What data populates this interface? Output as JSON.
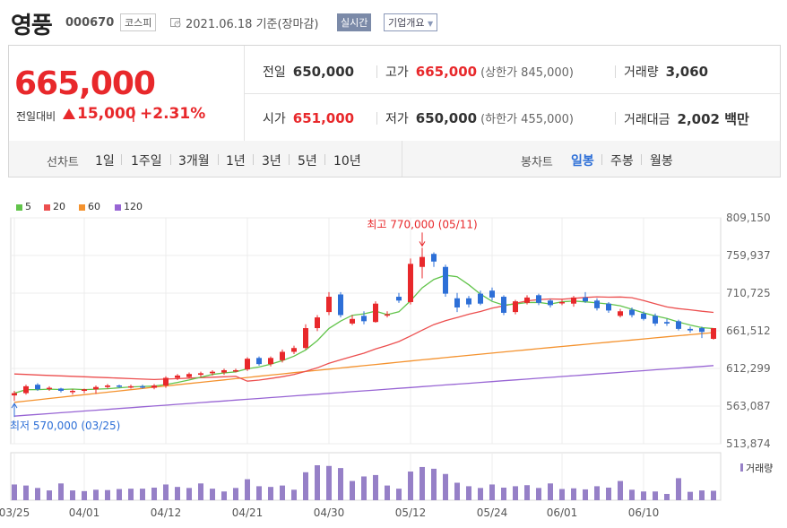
{
  "header": {
    "name": "영풍",
    "code": "000670",
    "market": "코스피",
    "date": "2021.06.18 기준(장마감)",
    "realtime": "실시간",
    "company": "기업개요"
  },
  "price": {
    "current": "665,000",
    "diff_label": "전일대비",
    "diff": "15,000",
    "rate": "+2.31%",
    "stats": {
      "prev_label": "전일",
      "prev": "650,000",
      "high_label": "고가",
      "high": "665,000",
      "upper_label": "(상한가 845,000)",
      "volume_label": "거래량",
      "volume": "3,060",
      "open_label": "시가",
      "open": "651,000",
      "low_label": "저가",
      "low": "650,000",
      "lower_label": "(하한가 455,000)",
      "amount_label": "거래대금",
      "amount": "2,002 백만"
    }
  },
  "periods": {
    "line_title": "선차트",
    "line_items": [
      "1일",
      "1주일",
      "3개월",
      "1년",
      "3년",
      "5년",
      "10년"
    ],
    "candle_title": "봉차트",
    "candle_items": [
      "일봉",
      "주봉",
      "월봉"
    ],
    "active_candle": "일봉"
  },
  "legend": [
    {
      "label": "5",
      "color": "#62c44b"
    },
    {
      "label": "20",
      "color": "#ec4f4f"
    },
    {
      "label": "60",
      "color": "#f4922e"
    },
    {
      "label": "120",
      "color": "#9865d4"
    }
  ],
  "colors": {
    "up": "#e8282b",
    "down": "#2d6fd7",
    "vol": "#9680c7"
  },
  "chart_data": {
    "type": "candlestick",
    "y_ticks": [
      "809,150",
      "759,937",
      "710,725",
      "661,512",
      "612,299",
      "563,087",
      "513,874"
    ],
    "ylim": [
      513874,
      809150
    ],
    "x_ticks": [
      {
        "label": "03/25",
        "index": 0
      },
      {
        "label": "04/01",
        "index": 6
      },
      {
        "label": "04/12",
        "index": 13
      },
      {
        "label": "04/21",
        "index": 20
      },
      {
        "label": "04/30",
        "index": 27
      },
      {
        "label": "05/12",
        "index": 34
      },
      {
        "label": "05/24",
        "index": 41
      },
      {
        "label": "06/01",
        "index": 47
      },
      {
        "label": "06/10",
        "index": 54
      }
    ],
    "max_annotation": "최고 770,000 (05/11)",
    "min_annotation": "최저 570,000 (03/25)",
    "volume_label": "거래량",
    "candles": [
      {
        "o": 577000,
        "c": 580000,
        "h": 583000,
        "l": 570000,
        "v": 45
      },
      {
        "o": 580000,
        "c": 589000,
        "h": 591000,
        "l": 578000,
        "v": 42
      },
      {
        "o": 591000,
        "c": 585000,
        "h": 593000,
        "l": 583000,
        "v": 35
      },
      {
        "o": 586000,
        "c": 587000,
        "h": 589000,
        "l": 583000,
        "v": 28
      },
      {
        "o": 586000,
        "c": 583000,
        "h": 587000,
        "l": 581000,
        "v": 48
      },
      {
        "o": 583000,
        "c": 583000,
        "h": 585000,
        "l": 578000,
        "v": 28
      },
      {
        "o": 583000,
        "c": 585000,
        "h": 586000,
        "l": 580000,
        "v": 26
      },
      {
        "o": 585000,
        "c": 588000,
        "h": 590000,
        "l": 579000,
        "v": 30
      },
      {
        "o": 588000,
        "c": 590000,
        "h": 592000,
        "l": 586000,
        "v": 29
      },
      {
        "o": 590000,
        "c": 589000,
        "h": 591000,
        "l": 587000,
        "v": 32
      },
      {
        "o": 589000,
        "c": 589000,
        "h": 591000,
        "l": 586000,
        "v": 33
      },
      {
        "o": 589000,
        "c": 588000,
        "h": 591000,
        "l": 586000,
        "v": 33
      },
      {
        "o": 587000,
        "c": 590000,
        "h": 592000,
        "l": 585000,
        "v": 36
      },
      {
        "o": 590000,
        "c": 600000,
        "h": 602000,
        "l": 587000,
        "v": 45
      },
      {
        "o": 600000,
        "c": 603000,
        "h": 605000,
        "l": 597000,
        "v": 38
      },
      {
        "o": 601000,
        "c": 605000,
        "h": 607000,
        "l": 599000,
        "v": 35
      },
      {
        "o": 604000,
        "c": 606000,
        "h": 608000,
        "l": 601000,
        "v": 48
      },
      {
        "o": 606000,
        "c": 608000,
        "h": 610000,
        "l": 603000,
        "v": 33
      },
      {
        "o": 607000,
        "c": 610000,
        "h": 612000,
        "l": 604000,
        "v": 25
      },
      {
        "o": 610000,
        "c": 610000,
        "h": 612000,
        "l": 607000,
        "v": 35
      },
      {
        "o": 611000,
        "c": 625000,
        "h": 627000,
        "l": 609000,
        "v": 60
      },
      {
        "o": 626000,
        "c": 618000,
        "h": 628000,
        "l": 616000,
        "v": 40
      },
      {
        "o": 618000,
        "c": 626000,
        "h": 628000,
        "l": 615000,
        "v": 38
      },
      {
        "o": 623000,
        "c": 634000,
        "h": 637000,
        "l": 620000,
        "v": 42
      },
      {
        "o": 634000,
        "c": 639000,
        "h": 642000,
        "l": 631000,
        "v": 30
      },
      {
        "o": 639000,
        "c": 665000,
        "h": 670000,
        "l": 637000,
        "v": 80
      },
      {
        "o": 665000,
        "c": 679000,
        "h": 682000,
        "l": 661000,
        "v": 100
      },
      {
        "o": 686000,
        "c": 706000,
        "h": 712000,
        "l": 682000,
        "v": 98
      },
      {
        "o": 709000,
        "c": 682000,
        "h": 712000,
        "l": 679000,
        "v": 92
      },
      {
        "o": 671000,
        "c": 677000,
        "h": 682000,
        "l": 669000,
        "v": 55
      },
      {
        "o": 681000,
        "c": 674000,
        "h": 687000,
        "l": 670000,
        "v": 68
      },
      {
        "o": 673000,
        "c": 697000,
        "h": 700000,
        "l": 672000,
        "v": 72
      },
      {
        "o": 683000,
        "c": 683000,
        "h": 687000,
        "l": 679000,
        "v": 42
      },
      {
        "o": 706000,
        "c": 701000,
        "h": 711000,
        "l": 698000,
        "v": 33
      },
      {
        "o": 699000,
        "c": 749000,
        "h": 756000,
        "l": 696000,
        "v": 82
      },
      {
        "o": 745000,
        "c": 758000,
        "h": 770000,
        "l": 730000,
        "v": 95
      },
      {
        "o": 762000,
        "c": 752000,
        "h": 764000,
        "l": 745000,
        "v": 90
      },
      {
        "o": 745000,
        "c": 710000,
        "h": 748000,
        "l": 706000,
        "v": 75
      },
      {
        "o": 704000,
        "c": 692000,
        "h": 711000,
        "l": 686000,
        "v": 50
      },
      {
        "o": 704000,
        "c": 696000,
        "h": 707000,
        "l": 692000,
        "v": 40
      },
      {
        "o": 710000,
        "c": 697000,
        "h": 714000,
        "l": 695000,
        "v": 35
      },
      {
        "o": 714000,
        "c": 705000,
        "h": 718000,
        "l": 701000,
        "v": 45
      },
      {
        "o": 706000,
        "c": 685000,
        "h": 708000,
        "l": 682000,
        "v": 36
      },
      {
        "o": 686000,
        "c": 700000,
        "h": 702000,
        "l": 683000,
        "v": 40
      },
      {
        "o": 698000,
        "c": 705000,
        "h": 708000,
        "l": 696000,
        "v": 43
      },
      {
        "o": 708000,
        "c": 698000,
        "h": 710000,
        "l": 695000,
        "v": 35
      },
      {
        "o": 701000,
        "c": 695000,
        "h": 703000,
        "l": 692000,
        "v": 48
      },
      {
        "o": 699000,
        "c": 699000,
        "h": 702000,
        "l": 695000,
        "v": 32
      },
      {
        "o": 697000,
        "c": 705000,
        "h": 707000,
        "l": 693000,
        "v": 34
      },
      {
        "o": 705000,
        "c": 700000,
        "h": 712000,
        "l": 698000,
        "v": 31
      },
      {
        "o": 701000,
        "c": 691000,
        "h": 704000,
        "l": 688000,
        "v": 40
      },
      {
        "o": 697000,
        "c": 688000,
        "h": 699000,
        "l": 685000,
        "v": 36
      },
      {
        "o": 681000,
        "c": 687000,
        "h": 690000,
        "l": 679000,
        "v": 55
      },
      {
        "o": 689000,
        "c": 682000,
        "h": 692000,
        "l": 679000,
        "v": 30
      },
      {
        "o": 684000,
        "c": 677000,
        "h": 687000,
        "l": 675000,
        "v": 25
      },
      {
        "o": 681000,
        "c": 671000,
        "h": 684000,
        "l": 668000,
        "v": 25
      },
      {
        "o": 673000,
        "c": 671000,
        "h": 677000,
        "l": 668000,
        "v": 18
      },
      {
        "o": 674000,
        "c": 664000,
        "h": 676000,
        "l": 662000,
        "v": 63
      },
      {
        "o": 664000,
        "c": 662000,
        "h": 667000,
        "l": 659000,
        "v": 24
      },
      {
        "o": 665000,
        "c": 660000,
        "h": 667000,
        "l": 652000,
        "v": 28
      },
      {
        "o": 651000,
        "c": 665000,
        "h": 665000,
        "l": 650000,
        "v": 27
      }
    ]
  }
}
